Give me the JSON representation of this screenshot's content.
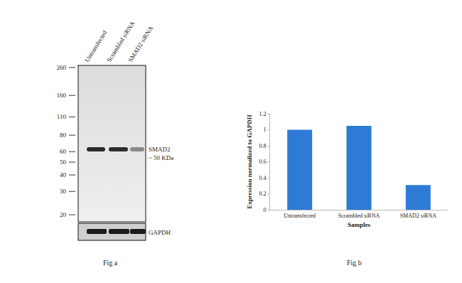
{
  "chart_data": {
    "type": "bar",
    "categories": [
      "Untransfected",
      "Scrambled siRNA",
      "SMAD2 siRNA"
    ],
    "values": [
      1,
      1.05,
      0.31
    ],
    "color": "#2e7bd6",
    "ylim": [
      0,
      1.2
    ],
    "yticks": [
      0,
      0.2,
      0.4,
      0.6,
      0.8,
      1,
      1.2
    ],
    "x_label": "Samples",
    "y_label": "Expression normalized to GAPDH",
    "caption": "Fig b",
    "grid": false
  },
  "blot": {
    "lanes": [
      "Untransfected",
      "Scrambled siRNA",
      "SMAD2 siRNA"
    ],
    "markers": [
      260,
      160,
      110,
      80,
      60,
      50,
      40,
      30,
      20
    ],
    "band_label": [
      "SMAD2",
      "~ 50 KDa"
    ],
    "loading_control": "GAPDH",
    "caption": "Fig a"
  }
}
